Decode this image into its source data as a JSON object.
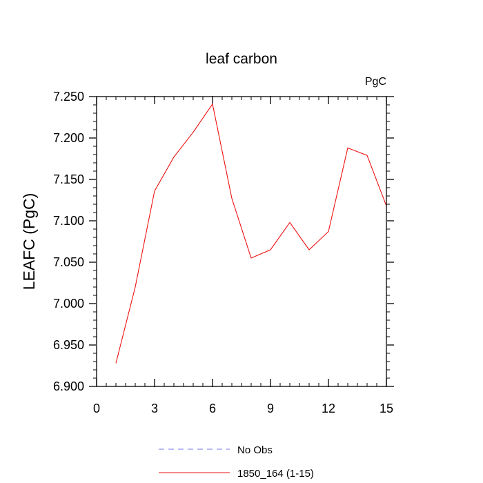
{
  "chart_data": {
    "type": "line",
    "title": "leaf carbon",
    "units_label": "PgC",
    "ylabel": "LEAFC  (PgC)",
    "xlabel": "",
    "xlim": [
      0,
      15
    ],
    "ylim": [
      6.9,
      7.25
    ],
    "x_ticks": [
      0,
      3,
      6,
      9,
      12,
      15
    ],
    "x_tick_labels": [
      "0",
      "3",
      "6",
      "9",
      "12",
      "15"
    ],
    "y_ticks": [
      6.9,
      6.95,
      7.0,
      7.05,
      7.1,
      7.15,
      7.2,
      7.25
    ],
    "y_tick_labels": [
      "6.900",
      "6.950",
      "7.000",
      "7.050",
      "7.100",
      "7.150",
      "7.200",
      "7.250"
    ],
    "grid": false,
    "legend_position": "bottom-center",
    "series": [
      {
        "name": "No Obs",
        "color": "#7777ee",
        "dash": "dashed",
        "x": [],
        "values": []
      },
      {
        "name": "1850_164 (1-15)",
        "color": "#ee1111",
        "dash": "solid",
        "x": [
          1,
          2,
          3,
          4,
          5,
          6,
          7,
          8,
          9,
          10,
          11,
          12,
          13,
          14,
          15
        ],
        "values": [
          6.928,
          7.02,
          7.136,
          7.177,
          7.207,
          7.241,
          7.127,
          7.055,
          7.065,
          7.098,
          7.065,
          7.087,
          7.188,
          7.179,
          7.118
        ]
      }
    ]
  }
}
